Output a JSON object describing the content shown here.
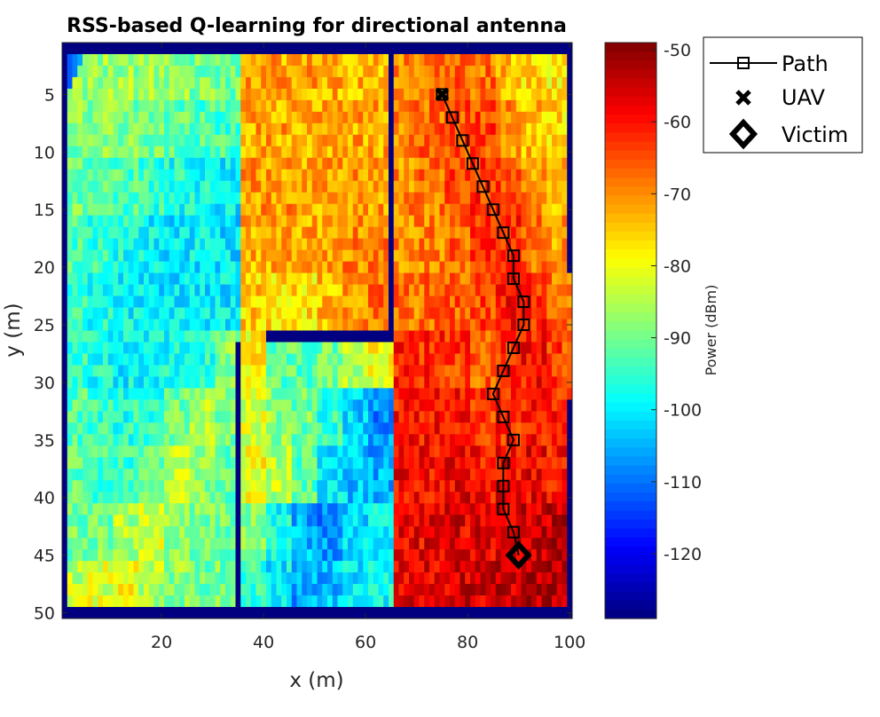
{
  "chart_data": {
    "type": "heatmap",
    "title": "RSS-based Q-learning for directional antenna",
    "xlabel": "x (m)",
    "ylabel": "y (m)",
    "xlim": [
      0.5,
      100.5
    ],
    "ylim": [
      0.5,
      50.5
    ],
    "y_reversed": true,
    "xticks": [
      20,
      40,
      60,
      80,
      100
    ],
    "yticks": [
      5,
      10,
      15,
      20,
      25,
      30,
      35,
      40,
      45,
      50
    ],
    "colormap": "jet",
    "clim": [
      -129,
      -49
    ],
    "colorbar": {
      "label": "Power (dBm)",
      "ticks": [
        -50,
        -60,
        -70,
        -80,
        -90,
        -100,
        -110,
        -120
      ]
    },
    "grid_note_block_size": [
      5,
      5
    ],
    "power_blocks_dbm": [
      [
        -88,
        -87,
        -87,
        -87,
        -88,
        -89,
        -90,
        -72,
        -72,
        -72,
        -73,
        -73,
        -73,
        -70,
        -68,
        -65,
        -68,
        -74,
        -76,
        -78
      ],
      [
        -89,
        -89,
        -89,
        -90,
        -91,
        -93,
        -94,
        -72,
        -72,
        -72,
        -72,
        -72,
        -72,
        -69,
        -67,
        -65,
        -64,
        -70,
        -74,
        -76
      ],
      [
        -90,
        -91,
        -93,
        -95,
        -97,
        -98,
        -100,
        -71,
        -71,
        -72,
        -72,
        -71,
        -71,
        -70,
        -68,
        -65,
        -63,
        -64,
        -70,
        -74
      ],
      [
        -93,
        -95,
        -97,
        -99,
        -100,
        -100,
        -101,
        -73,
        -72,
        -72,
        -72,
        -70,
        -69,
        -70,
        -69,
        -67,
        -64,
        -62,
        -67,
        -72
      ],
      [
        -95,
        -97,
        -99,
        -101,
        -100,
        -100,
        -100,
        -75,
        -76,
        -77,
        -74,
        -70,
        -68,
        -68,
        -67,
        -66,
        -64,
        -60,
        -62,
        -68
      ],
      [
        -95,
        -97,
        -99,
        -99,
        -98,
        -96,
        -88,
        -78,
        -92,
        -92,
        -90,
        -85,
        -80,
        -62,
        -62,
        -63,
        -66,
        -62,
        -60,
        -64
      ],
      [
        -93,
        -95,
        -96,
        -95,
        -90,
        -85,
        -90,
        -82,
        -88,
        -90,
        -95,
        -102,
        -108,
        -60,
        -60,
        -60,
        -63,
        -62,
        -60,
        -62
      ],
      [
        -92,
        -94,
        -94,
        -90,
        -84,
        -88,
        -92,
        -80,
        -85,
        -92,
        -100,
        -103,
        -105,
        -59,
        -59,
        -58,
        -60,
        -59,
        -58,
        -60
      ],
      [
        -90,
        -90,
        -86,
        -82,
        -87,
        -90,
        -90,
        -88,
        -98,
        -105,
        -108,
        -102,
        -100,
        -58,
        -58,
        -57,
        -57,
        -56,
        -55,
        -54
      ],
      [
        -84,
        -82,
        -80,
        -85,
        -88,
        -90,
        -90,
        -95,
        -100,
        -106,
        -104,
        -100,
        -98,
        -58,
        -57,
        -56,
        -56,
        -55,
        -54,
        -53
      ]
    ],
    "walls": [
      {
        "x": [
          65,
          65
        ],
        "y": [
          1,
          26
        ]
      },
      {
        "x": [
          41,
          65
        ],
        "y": [
          26,
          26
        ]
      },
      {
        "x": [
          35,
          35
        ],
        "y": [
          27,
          50
        ]
      },
      {
        "x": [
          1,
          100
        ],
        "y": [
          1,
          1
        ]
      },
      {
        "x": [
          1,
          100
        ],
        "y": [
          50,
          50
        ]
      },
      {
        "x": [
          1,
          1
        ],
        "y": [
          1,
          50
        ]
      },
      {
        "x": [
          100,
          100
        ],
        "y": [
          1,
          20
        ]
      },
      {
        "x": [
          100,
          100
        ],
        "y": [
          32,
          50
        ]
      }
    ],
    "wall_value_dbm": -129,
    "series": [
      {
        "name": "Path",
        "type": "line",
        "marker": "square",
        "color": "#000000",
        "x": [
          75,
          77,
          79,
          81,
          83,
          85,
          87,
          89,
          89,
          91,
          91,
          89,
          87,
          85,
          87,
          89,
          87,
          87,
          87,
          89
        ],
        "y": [
          5,
          7,
          9,
          11,
          13,
          15,
          17,
          19,
          21,
          23,
          25,
          27,
          29,
          31,
          33,
          35,
          37,
          39,
          41,
          43
        ]
      },
      {
        "name": "UAV",
        "type": "scatter",
        "marker": "x",
        "color": "#000000",
        "x": [
          75
        ],
        "y": [
          5
        ]
      },
      {
        "name": "Victim",
        "type": "scatter",
        "marker": "diamond",
        "color": "#000000",
        "x": [
          90
        ],
        "y": [
          45
        ]
      }
    ],
    "legend": {
      "position": "outside-top-right",
      "entries": [
        "Path",
        "UAV",
        "Victim"
      ]
    }
  }
}
